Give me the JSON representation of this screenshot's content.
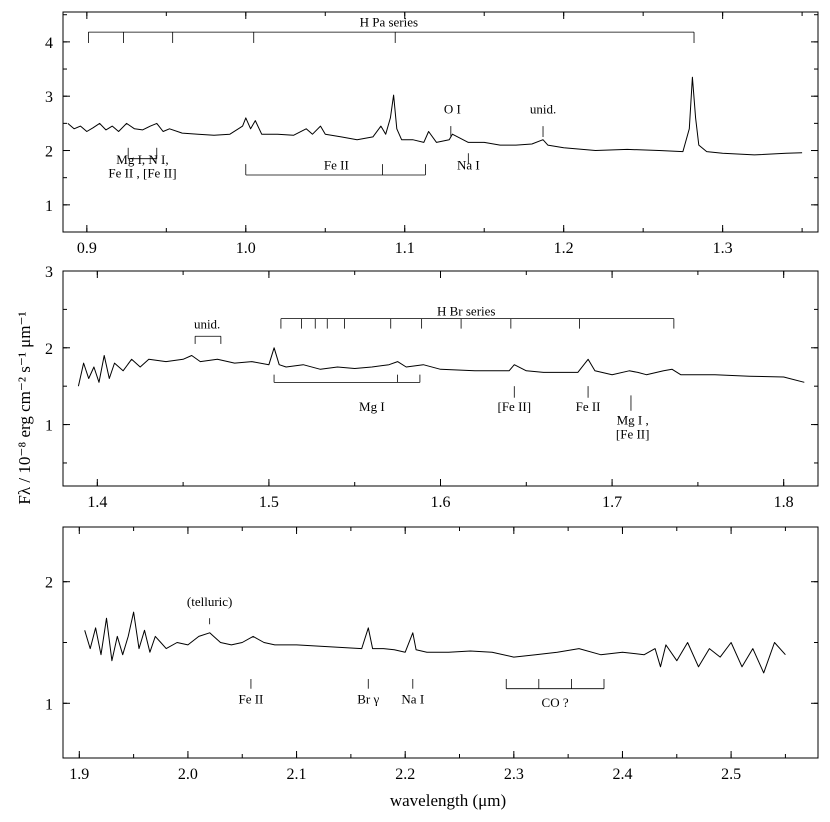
{
  "chart_data": [
    {
      "type": "line",
      "panel": "top",
      "xlim": [
        0.885,
        1.36
      ],
      "ylim": [
        0.5,
        4.55
      ],
      "x_ticks": [
        0.9,
        1.0,
        1.1,
        1.2,
        1.3
      ],
      "x_tick_labels": [
        "0.9",
        "1.0",
        "1.1",
        "1.2",
        "1.3"
      ],
      "y_ticks": [
        1,
        2,
        3,
        4
      ],
      "y_tick_labels": [
        "1",
        "2",
        "3",
        "4"
      ],
      "series": [
        {
          "x": [
            0.888,
            0.892,
            0.896,
            0.9,
            0.904,
            0.908,
            0.912,
            0.916,
            0.92,
            0.925,
            0.93,
            0.935,
            0.94,
            0.944,
            0.948,
            0.952,
            0.96,
            0.97,
            0.98,
            0.99,
            0.998,
            1.0,
            1.003,
            1.006,
            1.01,
            1.02,
            1.03,
            1.038,
            1.042,
            1.047,
            1.05,
            1.06,
            1.07,
            1.08,
            1.085,
            1.088,
            1.091,
            1.093,
            1.095,
            1.098,
            1.105,
            1.112,
            1.115,
            1.12,
            1.128,
            1.13,
            1.14,
            1.15,
            1.16,
            1.17,
            1.18,
            1.187,
            1.19,
            1.2,
            1.22,
            1.24,
            1.26,
            1.275,
            1.279,
            1.281,
            1.283,
            1.285,
            1.29,
            1.3,
            1.32,
            1.34,
            1.35
          ],
          "y": [
            2.5,
            2.4,
            2.45,
            2.35,
            2.42,
            2.5,
            2.38,
            2.45,
            2.35,
            2.5,
            2.4,
            2.38,
            2.45,
            2.5,
            2.35,
            2.4,
            2.32,
            2.3,
            2.28,
            2.3,
            2.45,
            2.6,
            2.4,
            2.55,
            2.3,
            2.3,
            2.28,
            2.4,
            2.3,
            2.45,
            2.3,
            2.25,
            2.2,
            2.25,
            2.45,
            2.3,
            2.6,
            3.02,
            2.4,
            2.2,
            2.2,
            2.15,
            2.35,
            2.15,
            2.2,
            2.3,
            2.15,
            2.15,
            2.1,
            2.1,
            2.12,
            2.2,
            2.1,
            2.05,
            2.0,
            2.02,
            2.0,
            1.98,
            2.4,
            3.35,
            2.6,
            2.1,
            1.98,
            1.95,
            1.92,
            1.95,
            1.96
          ]
        }
      ],
      "annotations": [
        {
          "text": "H Pa series",
          "x": 1.09,
          "y": 4.28
        },
        {
          "text": "O I",
          "x": 1.13,
          "y": 2.68
        },
        {
          "text": "unid.",
          "x": 1.187,
          "y": 2.68
        },
        {
          "text": "Mg I,  N I,",
          "x": 0.935,
          "y": 1.75
        },
        {
          "text": "Fe II ,  [Fe II]",
          "x": 0.935,
          "y": 1.5
        },
        {
          "text": "Fe II",
          "x": 1.057,
          "y": 1.65
        },
        {
          "text": "Na I",
          "x": 1.14,
          "y": 1.65
        }
      ]
    },
    {
      "type": "line",
      "panel": "middle",
      "xlim": [
        1.38,
        1.82
      ],
      "ylim": [
        0.2,
        3.0
      ],
      "x_ticks": [
        1.4,
        1.5,
        1.6,
        1.7,
        1.8
      ],
      "x_tick_labels": [
        "1.4",
        "1.5",
        "1.6",
        "1.7",
        "1.8"
      ],
      "y_ticks": [
        1,
        2,
        3
      ],
      "y_tick_labels": [
        "1",
        "2",
        "3"
      ],
      "series": [
        {
          "x": [
            1.389,
            1.392,
            1.395,
            1.398,
            1.401,
            1.404,
            1.407,
            1.41,
            1.415,
            1.42,
            1.425,
            1.43,
            1.44,
            1.45,
            1.455,
            1.46,
            1.47,
            1.48,
            1.49,
            1.5,
            1.503,
            1.506,
            1.51,
            1.52,
            1.53,
            1.54,
            1.55,
            1.56,
            1.57,
            1.575,
            1.58,
            1.59,
            1.6,
            1.62,
            1.64,
            1.643,
            1.65,
            1.66,
            1.68,
            1.686,
            1.69,
            1.7,
            1.71,
            1.715,
            1.72,
            1.73,
            1.735,
            1.74,
            1.76,
            1.78,
            1.8,
            1.812
          ],
          "y": [
            1.5,
            1.8,
            1.6,
            1.75,
            1.55,
            1.9,
            1.6,
            1.8,
            1.7,
            1.85,
            1.75,
            1.85,
            1.82,
            1.85,
            1.9,
            1.82,
            1.85,
            1.8,
            1.82,
            1.78,
            2.0,
            1.78,
            1.75,
            1.78,
            1.72,
            1.75,
            1.73,
            1.75,
            1.78,
            1.82,
            1.75,
            1.78,
            1.72,
            1.7,
            1.7,
            1.78,
            1.7,
            1.68,
            1.68,
            1.85,
            1.7,
            1.65,
            1.7,
            1.68,
            1.65,
            1.7,
            1.72,
            1.65,
            1.65,
            1.63,
            1.62,
            1.55
          ]
        }
      ],
      "annotations": [
        {
          "text": "unid.",
          "x": 1.464,
          "y": 2.25
        },
        {
          "text": "H Br series",
          "x": 1.615,
          "y": 2.42
        },
        {
          "text": "Mg I",
          "x": 1.56,
          "y": 1.18
        },
        {
          "text": "[Fe II]",
          "x": 1.643,
          "y": 1.18
        },
        {
          "text": "Fe II",
          "x": 1.686,
          "y": 1.18
        },
        {
          "text": "Mg I ,",
          "x": 1.712,
          "y": 1.0
        },
        {
          "text": "[Fe II]",
          "x": 1.712,
          "y": 0.82
        }
      ]
    },
    {
      "type": "line",
      "panel": "bottom",
      "xlim": [
        1.885,
        2.58
      ],
      "ylim": [
        0.55,
        2.45
      ],
      "x_ticks": [
        1.9,
        2.0,
        2.1,
        2.2,
        2.3,
        2.4,
        2.5
      ],
      "x_tick_labels": [
        "1.9",
        "2.0",
        "2.1",
        "2.2",
        "2.3",
        "2.4",
        "2.5"
      ],
      "y_ticks": [
        1,
        2
      ],
      "y_tick_labels": [
        "1",
        "2"
      ],
      "xlabel": "wavelength  (μm)",
      "series": [
        {
          "x": [
            1.905,
            1.91,
            1.915,
            1.92,
            1.925,
            1.93,
            1.935,
            1.94,
            1.945,
            1.95,
            1.955,
            1.96,
            1.965,
            1.97,
            1.975,
            1.98,
            1.99,
            2.0,
            2.01,
            2.02,
            2.03,
            2.04,
            2.05,
            2.06,
            2.07,
            2.08,
            2.1,
            2.12,
            2.14,
            2.16,
            2.166,
            2.17,
            2.18,
            2.19,
            2.2,
            2.207,
            2.21,
            2.22,
            2.24,
            2.26,
            2.28,
            2.3,
            2.32,
            2.34,
            2.36,
            2.38,
            2.4,
            2.42,
            2.43,
            2.435,
            2.44,
            2.45,
            2.46,
            2.47,
            2.48,
            2.49,
            2.5,
            2.51,
            2.52,
            2.53,
            2.54,
            2.55
          ],
          "y": [
            1.6,
            1.45,
            1.62,
            1.4,
            1.7,
            1.35,
            1.55,
            1.4,
            1.55,
            1.75,
            1.45,
            1.6,
            1.42,
            1.55,
            1.5,
            1.45,
            1.5,
            1.48,
            1.55,
            1.58,
            1.5,
            1.48,
            1.5,
            1.55,
            1.5,
            1.48,
            1.48,
            1.47,
            1.46,
            1.45,
            1.62,
            1.45,
            1.45,
            1.44,
            1.42,
            1.58,
            1.44,
            1.42,
            1.42,
            1.43,
            1.42,
            1.38,
            1.4,
            1.42,
            1.45,
            1.4,
            1.42,
            1.4,
            1.45,
            1.3,
            1.48,
            1.35,
            1.5,
            1.3,
            1.45,
            1.38,
            1.5,
            1.3,
            1.45,
            1.25,
            1.5,
            1.4
          ]
        }
      ],
      "annotations": [
        {
          "text": "(telluric)",
          "x": 2.02,
          "y": 1.8
        },
        {
          "text": "Fe II",
          "x": 2.058,
          "y": 1.0
        },
        {
          "text": "Br γ",
          "x": 2.166,
          "y": 1.0
        },
        {
          "text": "Na I",
          "x": 2.207,
          "y": 1.0
        },
        {
          "text": "CO ?",
          "x": 2.338,
          "y": 0.97
        }
      ]
    }
  ],
  "ylabel": "Fλ / 10⁻⁸ erg cm⁻² s⁻¹ μm⁻¹"
}
